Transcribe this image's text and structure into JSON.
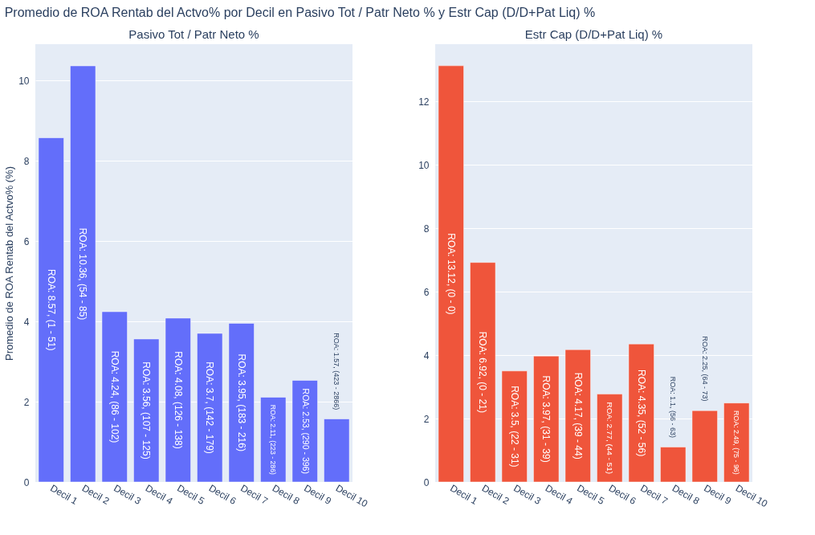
{
  "chart_data": [
    {
      "type": "bar",
      "title": "Promedio de ROA Rentab del Actvo% por Decil en Pasivo Tot / Patr Neto % y Estr Cap (D/D+Pat Liq) %",
      "subtitle": "Pasivo Tot / Patr Neto %",
      "ylabel": "Promedio de ROA Rentab del Actvo% (%)",
      "categories": [
        "Decil 1",
        "Decil 2",
        "Decil 3",
        "Decil 4",
        "Decil 5",
        "Decil 6",
        "Decil 7",
        "Decil 8",
        "Decil 9",
        "Decil 10"
      ],
      "values": [
        8.57,
        10.36,
        4.24,
        3.56,
        4.08,
        3.7,
        3.95,
        2.11,
        2.53,
        1.57
      ],
      "value_labels": [
        "ROA: 8.57, (1 - 51)",
        "ROA: 10.36, (54 - 85)",
        "ROA: 4.24, (86 - 102)",
        "ROA: 3.56, (107 - 125)",
        "ROA: 4.08, (126 - 138)",
        "ROA: 3.7, (142 - 179)",
        "ROA: 3.95, (183 - 216)",
        "ROA: 2.11, (223 - 286)",
        "ROA: 2.53, (290 - 396)",
        "ROA: 1.57, (423 - 2866)"
      ],
      "color": "#636efa",
      "ylim": [
        0,
        10.9
      ],
      "yticks": [
        0,
        2,
        4,
        6,
        8,
        10
      ],
      "grid": "y",
      "legend": false
    },
    {
      "type": "bar",
      "subtitle": "Estr Cap (D/D+Pat Liq) %",
      "categories": [
        "Decil 1",
        "Decil 2",
        "Decil 3",
        "Decil 4",
        "Decil 5",
        "Decil 6",
        "Decil 7",
        "Decil 8",
        "Decil 9",
        "Decil 10"
      ],
      "values": [
        13.12,
        6.92,
        3.5,
        3.97,
        4.17,
        2.77,
        4.35,
        1.1,
        2.25,
        2.49
      ],
      "value_labels": [
        "ROA: 13.12, (0 - 0)",
        "ROA: 6.92, (0 - 21)",
        "ROA: 3.5, (22 - 31)",
        "ROA: 3.97, (31 - 39)",
        "ROA: 4.17, (39 - 44)",
        "ROA: 2.77, (44 - 51)",
        "ROA: 4.35, (52 - 56)",
        "ROA: 1.1, (56 - 63)",
        "ROA: 2.25, (64 - 73)",
        "ROA: 2.49, (75 - 96)"
      ],
      "color": "#ef553b",
      "ylim": [
        0,
        13.8
      ],
      "yticks": [
        0,
        2,
        4,
        6,
        8,
        10,
        12
      ],
      "grid": "y",
      "legend": false
    }
  ]
}
